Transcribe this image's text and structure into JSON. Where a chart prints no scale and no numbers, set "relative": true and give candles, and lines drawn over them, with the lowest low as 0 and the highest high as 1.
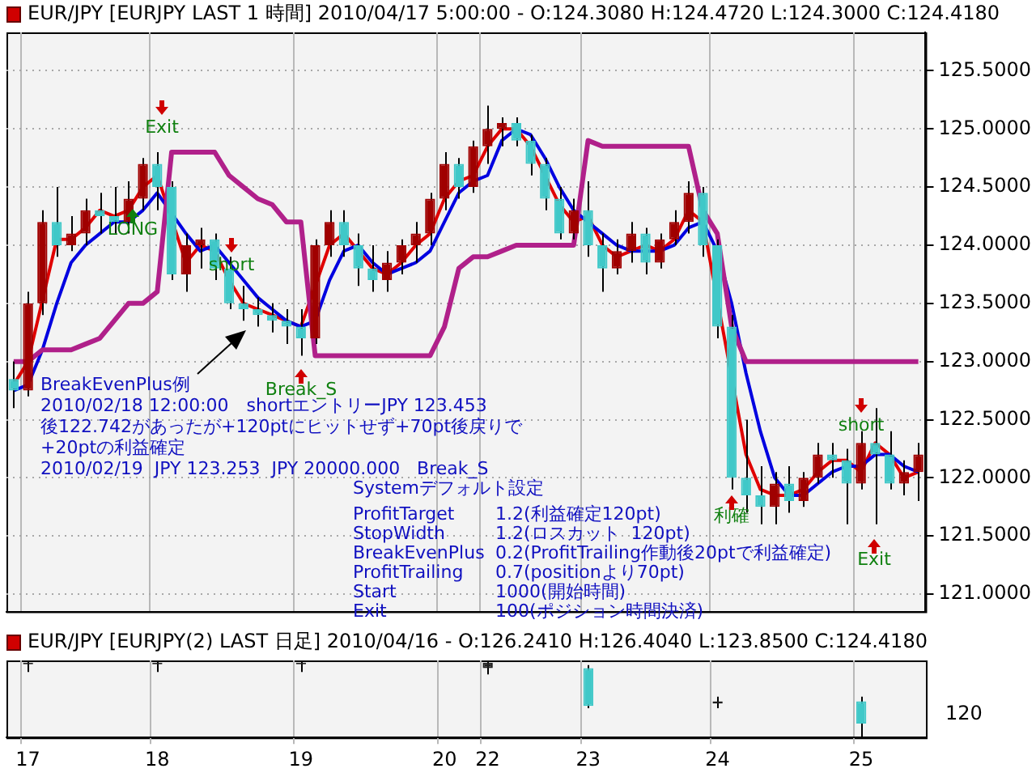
{
  "chart_data": [
    {
      "type": "candlestick",
      "title": "EUR/JPY [EURJPY LAST 1 時間] 2010/04/17 5:00:00 - O:124.3080 H:124.4720 L:124.3000 C:124.4180",
      "categories": [
        null,
        "17",
        null,
        null,
        null,
        null,
        null,
        null,
        null,
        null,
        "18",
        null,
        null,
        null,
        null,
        null,
        null,
        null,
        null,
        null,
        "19",
        null,
        null,
        null,
        null,
        null,
        null,
        null,
        null,
        null,
        "20",
        null,
        null,
        "22",
        null,
        null,
        null,
        null,
        null,
        null,
        "23",
        null,
        null,
        null,
        null,
        null,
        null,
        null,
        null,
        "24",
        null,
        null,
        null,
        null,
        null,
        null,
        null,
        null,
        null,
        "25",
        null,
        null,
        null,
        null
      ],
      "ohlc": [
        [
          122.85,
          123.0,
          122.6,
          122.75
        ],
        [
          122.75,
          123.6,
          122.7,
          123.5
        ],
        [
          123.5,
          124.3,
          123.4,
          124.2
        ],
        [
          124.2,
          124.5,
          123.9,
          124.0
        ],
        [
          124.0,
          124.25,
          123.95,
          124.1
        ],
        [
          124.1,
          124.4,
          124.0,
          124.3
        ],
        [
          124.3,
          124.45,
          124.1,
          124.25
        ],
        [
          124.25,
          124.5,
          124.1,
          124.2
        ],
        [
          124.2,
          124.55,
          124.1,
          124.4
        ],
        [
          124.4,
          124.75,
          124.3,
          124.7
        ],
        [
          124.7,
          124.8,
          124.3,
          124.5
        ],
        [
          124.5,
          124.55,
          123.7,
          123.75
        ],
        [
          123.75,
          124.1,
          123.6,
          124.0
        ],
        [
          124.0,
          124.15,
          123.8,
          124.05
        ],
        [
          124.05,
          124.1,
          123.7,
          123.8
        ],
        [
          123.8,
          123.9,
          123.45,
          123.5
        ],
        [
          123.5,
          123.65,
          123.35,
          123.45
        ],
        [
          123.45,
          123.55,
          123.3,
          123.4
        ],
        [
          123.4,
          123.5,
          123.25,
          123.35
        ],
        [
          123.35,
          123.45,
          123.15,
          123.3
        ],
        [
          123.3,
          123.45,
          123.05,
          123.2
        ],
        [
          123.2,
          124.05,
          123.15,
          124.0
        ],
        [
          124.0,
          124.3,
          123.9,
          124.2
        ],
        [
          124.2,
          124.3,
          123.9,
          124.0
        ],
        [
          124.0,
          124.1,
          123.65,
          123.8
        ],
        [
          123.8,
          124.0,
          123.6,
          123.7
        ],
        [
          123.7,
          123.95,
          123.6,
          123.85
        ],
        [
          123.85,
          124.05,
          123.75,
          124.0
        ],
        [
          124.0,
          124.2,
          123.85,
          124.1
        ],
        [
          124.1,
          124.45,
          124.0,
          124.4
        ],
        [
          124.4,
          124.8,
          124.3,
          124.7
        ],
        [
          124.7,
          124.75,
          124.4,
          124.5
        ],
        [
          124.5,
          124.9,
          124.45,
          124.85
        ],
        [
          124.85,
          125.2,
          124.7,
          125.0
        ],
        [
          125.0,
          125.1,
          124.85,
          125.05
        ],
        [
          125.05,
          125.1,
          124.85,
          124.9
        ],
        [
          124.9,
          124.95,
          124.6,
          124.7
        ],
        [
          124.7,
          124.75,
          124.3,
          124.4
        ],
        [
          124.4,
          124.5,
          124.05,
          124.1
        ],
        [
          124.1,
          124.4,
          124.05,
          124.3
        ],
        [
          124.3,
          124.55,
          123.9,
          124.0
        ],
        [
          124.0,
          124.1,
          123.6,
          123.8
        ],
        [
          123.8,
          124.05,
          123.75,
          123.95
        ],
        [
          123.95,
          124.2,
          123.85,
          124.1
        ],
        [
          124.1,
          124.15,
          123.75,
          123.85
        ],
        [
          123.85,
          124.1,
          123.8,
          124.05
        ],
        [
          124.05,
          124.3,
          124.0,
          124.2
        ],
        [
          124.2,
          124.55,
          124.1,
          124.45
        ],
        [
          124.45,
          124.5,
          123.9,
          124.0
        ],
        [
          124.0,
          124.05,
          123.2,
          123.3
        ],
        [
          123.3,
          123.4,
          121.9,
          122.0
        ],
        [
          122.0,
          122.5,
          121.7,
          121.85
        ],
        [
          121.85,
          122.1,
          121.6,
          121.75
        ],
        [
          121.75,
          122.05,
          121.6,
          121.95
        ],
        [
          121.95,
          122.1,
          121.7,
          121.8
        ],
        [
          121.8,
          122.05,
          121.75,
          122.0
        ],
        [
          122.0,
          122.3,
          121.95,
          122.2
        ],
        [
          122.2,
          122.3,
          122.0,
          122.15
        ],
        [
          122.15,
          122.25,
          121.6,
          121.95
        ],
        [
          121.95,
          122.4,
          121.9,
          122.3
        ],
        [
          122.3,
          122.6,
          121.6,
          122.2
        ],
        [
          122.2,
          122.4,
          121.9,
          121.95
        ],
        [
          121.95,
          122.15,
          121.85,
          122.05
        ],
        [
          122.05,
          122.3,
          121.8,
          122.2
        ]
      ],
      "colors": [
        "#40c8c8",
        "#a00000",
        "#a00000",
        "#40c8c8",
        "#a00000",
        "#a00000",
        "#40c8c8",
        "#40c8c8",
        "#a00000",
        "#a00000",
        "#40c8c8",
        "#40c8c8",
        "#a00000",
        "#a00000",
        "#40c8c8",
        "#40c8c8",
        "#40c8c8",
        "#40c8c8",
        "#40c8c8",
        "#40c8c8",
        "#40c8c8",
        "#a00000",
        "#a00000",
        "#40c8c8",
        "#40c8c8",
        "#40c8c8",
        "#a00000",
        "#a00000",
        "#a00000",
        "#a00000",
        "#a00000",
        "#40c8c8",
        "#a00000",
        "#a00000",
        "#a00000",
        "#40c8c8",
        "#40c8c8",
        "#40c8c8",
        "#40c8c8",
        "#a00000",
        "#40c8c8",
        "#40c8c8",
        "#a00000",
        "#a00000",
        "#40c8c8",
        "#a00000",
        "#a00000",
        "#a00000",
        "#40c8c8",
        "#40c8c8",
        "#40c8c8",
        "#40c8c8",
        "#40c8c8",
        "#a00000",
        "#40c8c8",
        "#a00000",
        "#a00000",
        "#40c8c8",
        "#40c8c8",
        "#a00000",
        "#40c8c8",
        "#40c8c8",
        "#a00000",
        "#a00000"
      ],
      "series": [
        {
          "type": "line",
          "color": "#b0208a",
          "values": [
            123.0,
            123.0,
            123.1,
            123.1,
            123.1,
            123.15,
            123.2,
            123.35,
            123.5,
            123.5,
            123.6,
            124.8,
            124.8,
            124.8,
            124.8,
            124.6,
            124.5,
            124.4,
            124.35,
            124.2,
            124.2,
            123.05,
            123.05,
            123.05,
            123.05,
            123.05,
            123.05,
            123.05,
            123.05,
            123.05,
            123.3,
            123.8,
            123.9,
            123.9,
            123.95,
            124.0,
            124.0,
            124.0,
            124.0,
            124.0,
            124.9,
            124.85,
            124.85,
            124.85,
            124.85,
            124.85,
            124.85,
            124.85,
            124.3,
            124.1,
            123.3,
            123.0,
            123.0,
            123.0,
            123.0,
            123.0,
            123.0,
            123.0,
            123.0,
            123.0,
            123.0,
            123.0,
            123.0,
            123.0
          ]
        },
        {
          "type": "line",
          "color": "#0000e0",
          "values": [
            122.75,
            122.8,
            123.1,
            123.5,
            123.85,
            124.0,
            124.1,
            124.2,
            124.2,
            124.3,
            124.45,
            null,
            124.1,
            123.95,
            124.0,
            123.85,
            123.7,
            123.55,
            123.45,
            123.35,
            123.3,
            123.35,
            123.7,
            123.95,
            124.0,
            123.85,
            123.75,
            123.8,
            123.85,
            123.95,
            124.2,
            124.45,
            124.55,
            124.6,
            124.9,
            125.0,
            124.95,
            124.75,
            124.5,
            124.3,
            124.2,
            124.1,
            124.0,
            123.95,
            123.95,
            123.95,
            124.0,
            124.15,
            124.2,
            123.95,
            123.5,
            122.9,
            122.4,
            122.0,
            121.85,
            121.85,
            121.95,
            122.05,
            122.1,
            122.1,
            122.2,
            122.2,
            122.1,
            122.05
          ]
        },
        {
          "type": "line",
          "color": "#e00000",
          "values": [
            122.8,
            123.0,
            null,
            124.05,
            124.05,
            124.15,
            124.3,
            124.25,
            124.3,
            124.5,
            124.6,
            null,
            123.85,
            124.0,
            123.95,
            123.7,
            123.5,
            123.45,
            123.4,
            123.35,
            123.3,
            null,
            124.0,
            124.1,
            123.95,
            123.8,
            123.75,
            123.85,
            124.0,
            124.1,
            124.4,
            124.55,
            124.6,
            124.85,
            125.0,
            125.0,
            124.85,
            null,
            124.35,
            124.2,
            124.25,
            124.0,
            123.9,
            123.95,
            124.0,
            123.95,
            124.05,
            124.3,
            124.2,
            null,
            null,
            122.2,
            121.9,
            121.85,
            121.85,
            121.9,
            122.05,
            122.15,
            122.15,
            122.05,
            122.3,
            122.2,
            122.0,
            122.05
          ]
        }
      ],
      "ylim": [
        120.85,
        125.83
      ],
      "yticks": [
        {
          "value": 121,
          "label": "121.0000"
        },
        {
          "value": 121.5,
          "label": "121.5000"
        },
        {
          "value": 122,
          "label": "122.0000"
        },
        {
          "value": 122.5,
          "label": "122.5000"
        },
        {
          "value": 123,
          "label": "123.0000"
        },
        {
          "value": 123.5,
          "label": "123.5000"
        },
        {
          "value": 124,
          "label": "124.0000"
        },
        {
          "value": 124.5,
          "label": "124.5000"
        },
        {
          "value": 125,
          "label": "125.0000"
        },
        {
          "value": 125.5,
          "label": "125.5000"
        }
      ],
      "grid": true,
      "tick_labels": "y",
      "annotations": [
        "Exit",
        "LONG",
        "short",
        "Break_S",
        "利確",
        "short",
        "Exit",
        "BreakEvenPlus例",
        "2010/02/18 12:00:00　shortエントリーJPY 123.453",
        "後122.742があったが+120ptにヒットせず+70pt後戻りで",
        "+20ptの利益確定",
        "2010/02/19  JPY 123.253  JPY 20000.000   Break_S",
        "Systemデフォルト設定",
        "ProfitTarget",
        "1.2(利益確定120pt)",
        "StopWidth",
        "1.2(ロスカット  120pt)",
        "BreakEvenPlus",
        "0.2(ProfitTrailing作動後20ptで利益確定)",
        "ProfitTrailing",
        "0.7(positionより70pt)",
        "Start",
        "1000(開始時間)",
        "Exit",
        "100(ポジション時間決済)"
      ]
    },
    {
      "type": "candlestick",
      "title": "EUR/JPY [EURJPY(2) LAST 日足] 2010/04/16 - O:126.2410 H:126.4040 L:123.8500 C:124.4180",
      "categories": [
        null,
        "17",
        null,
        null,
        null,
        null,
        null,
        null,
        null,
        null,
        "18",
        null,
        null,
        null,
        null,
        null,
        null,
        null,
        null,
        null,
        "19",
        null,
        null,
        null,
        null,
        null,
        null,
        null,
        null,
        null,
        "20",
        null,
        null,
        "22",
        null,
        null,
        null,
        null,
        null,
        null,
        "23",
        null,
        null,
        null,
        null,
        null,
        null,
        null,
        null,
        "24",
        null,
        null,
        null,
        null,
        null,
        null,
        null,
        null,
        null,
        "25",
        null,
        null,
        null,
        null
      ],
      "ohlc": [
        null,
        [
          0.97,
          1,
          0.85,
          0.95
        ],
        null,
        null,
        null,
        null,
        null,
        null,
        null,
        null,
        [
          0.97,
          1,
          0.85,
          0.95
        ],
        null,
        null,
        null,
        null,
        null,
        null,
        null,
        null,
        null,
        [
          0.97,
          1,
          0.85,
          0.95
        ],
        null,
        null,
        null,
        null,
        null,
        null,
        null,
        null,
        null,
        null,
        null,
        null,
        [
          0.97,
          1,
          0.82,
          0.9
        ],
        null,
        null,
        null,
        null,
        null,
        null,
        [
          0.9,
          0.94,
          0.38,
          0.41
        ],
        null,
        null,
        null,
        null,
        null,
        null,
        null,
        null,
        [
          0.44,
          0.53,
          0.38,
          0.47
        ],
        null,
        null,
        null,
        null,
        null,
        null,
        null,
        null,
        null,
        [
          0.47,
          0.53,
          0,
          0.18
        ],
        null,
        null,
        null,
        null
      ],
      "colors": [
        null,
        "#202020",
        null,
        null,
        null,
        null,
        null,
        null,
        null,
        null,
        "#202020",
        null,
        null,
        null,
        null,
        null,
        null,
        null,
        null,
        null,
        "#202020",
        null,
        null,
        null,
        null,
        null,
        null,
        null,
        null,
        null,
        null,
        null,
        null,
        "#202020",
        null,
        null,
        null,
        null,
        null,
        null,
        "#40c8c8",
        null,
        null,
        null,
        null,
        null,
        null,
        null,
        null,
        "#202020",
        null,
        null,
        null,
        null,
        null,
        null,
        null,
        null,
        null,
        "#40c8c8",
        null,
        null,
        null,
        null
      ],
      "relative": true,
      "grid": "x",
      "tick_labels": "x",
      "annotations": [
        "120"
      ]
    }
  ]
}
